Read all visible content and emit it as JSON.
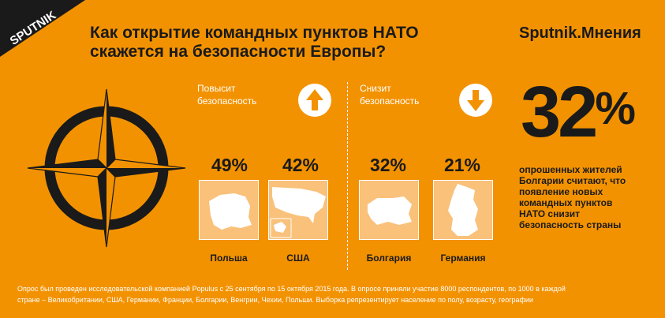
{
  "header": {
    "title_line1": "Как открытие командных пунктов НАТО",
    "title_line2": "скажется на безопасности Европы?",
    "brand": "Sputnik.Мнения",
    "logo_text": "SPUTNIK"
  },
  "groups": [
    {
      "label_line1": "Повысит",
      "label_line2": "безопасность",
      "arrow": "arrow-up-icon"
    },
    {
      "label_line1": "Снизит",
      "label_line2": "безопасность",
      "arrow": "arrow-down-icon"
    }
  ],
  "countries": [
    {
      "name": "Польша",
      "percent": "49%"
    },
    {
      "name": "США",
      "percent": "42%"
    },
    {
      "name": "Болгария",
      "percent": "32%"
    },
    {
      "name": "Германия",
      "percent": "21%"
    }
  ],
  "highlight": {
    "number": "32",
    "sign": "%",
    "text": "опрошенных жителей Болгарии считают, что появление новых командных пунктов НАТО снизит безопасность страны"
  },
  "footnote": {
    "line1": "Опрос был проведен исследовательской компанией Populus с 25 сентября по 15 октября 2015 года. В опросе приняли участие 8000 респондентов, по 1000 в каждой",
    "line2": "стране – Великобритании, США, Германии, Франции, Болгарии, Венгрии, Чехии, Польши. Выборка репрезентирует население по полу, возрасту, географии"
  },
  "colors": {
    "background": "#F39200",
    "dark": "#1a1a1a",
    "light": "#ffffff"
  }
}
